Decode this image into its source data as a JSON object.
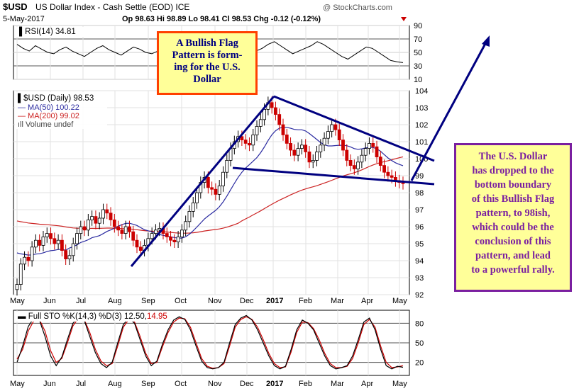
{
  "header": {
    "symbol": "$USD",
    "name": "US Dollar Index - Cash Settle (EOD)",
    "exchange": "ICE",
    "date": "5-May-2017",
    "ohlc": "Op 98.63  Hi 98.89  Lo 98.41  Cl 98.53  Chg -0.12 (-0.12%)",
    "brand": "@ StockCharts.com"
  },
  "rsi_label": "RSI(14) 34.81",
  "price_legend": {
    "title": "$USD (Daily) 98.53",
    "ma50": "MA(50) 100.22",
    "ma200": "MA(200) 99.02",
    "volume": "Volume undef"
  },
  "sto_label": "Full STO %K(14,3) %D(3) 12.50,",
  "sto_d_value": "14.95",
  "annotations": {
    "left": [
      "A Bullish Flag",
      "Pattern is form-",
      "ing for the U.S.",
      "Dollar"
    ],
    "right": [
      "The U.S. Dollar",
      "has dropped to the",
      "bottom boundary",
      "of this Bullish Flag",
      "pattern, to 98ish,",
      "which could be the",
      "conclusion of this",
      "pattern, and lead",
      "to a powerful rally."
    ]
  },
  "colors": {
    "up": "#000000",
    "down": "#cc0000",
    "ma50": "#2a2aa0",
    "ma200": "#cc2222",
    "trend": "#000080",
    "sto_k": "#000000",
    "sto_d": "#cc0000",
    "rsi": "#000000"
  },
  "chart_data": [
    {
      "type": "candlestick",
      "title": "$USD (Daily) 98.53",
      "x_ticks": [
        "May",
        "Jun",
        "Jul",
        "Aug",
        "Sep",
        "Oct",
        "Nov",
        "Dec",
        "2017",
        "Feb",
        "Mar",
        "Apr",
        "May"
      ],
      "ylim": [
        92,
        104
      ],
      "y_ticks": [
        92,
        93,
        94,
        95,
        96,
        97,
        98,
        99,
        100,
        101,
        102,
        103,
        104
      ],
      "close": [
        92.6,
        93.8,
        94.2,
        94.0,
        94.8,
        95.2,
        94.9,
        95.4,
        95.6,
        95.3,
        95.0,
        95.2,
        94.6,
        94.1,
        94.3,
        95.0,
        95.6,
        96.0,
        95.8,
        96.4,
        96.6,
        96.2,
        96.5,
        97.0,
        96.8,
        96.4,
        96.0,
        95.8,
        95.6,
        96.0,
        95.7,
        95.2,
        94.8,
        94.6,
        94.9,
        95.3,
        95.6,
        95.8,
        95.9,
        95.6,
        95.4,
        95.2,
        95.1,
        95.4,
        95.8,
        96.3,
        96.9,
        97.4,
        98.0,
        98.6,
        98.9,
        98.3,
        98.2,
        97.9,
        98.4,
        99.2,
        99.9,
        100.6,
        101.0,
        101.3,
        101.1,
        100.9,
        100.8,
        101.4,
        101.9,
        102.3,
        102.9,
        103.3,
        103.0,
        102.6,
        102.0,
        101.4,
        100.9,
        100.5,
        100.2,
        100.6,
        100.8,
        100.4,
        99.8,
        99.9,
        100.4,
        100.8,
        101.2,
        101.6,
        102.0,
        101.7,
        101.1,
        100.5,
        99.9,
        99.6,
        99.4,
        99.8,
        100.2,
        100.6,
        100.9,
        100.7,
        100.1,
        99.6,
        99.2,
        99.0,
        98.9,
        98.7,
        98.6,
        98.53
      ],
      "ma50": {
        "name": "MA(50)",
        "last": 100.22
      },
      "ma200": {
        "name": "MA(200)",
        "last": 99.02
      }
    },
    {
      "type": "line",
      "title": "RSI(14) 34.81",
      "ylim": [
        10,
        90
      ],
      "y_ticks": [
        10,
        30,
        50,
        70,
        90
      ],
      "values": [
        62,
        56,
        52,
        60,
        55,
        50,
        48,
        54,
        58,
        52,
        48,
        44,
        50,
        56,
        60,
        54,
        50,
        46,
        52,
        58,
        55,
        50,
        48,
        52,
        56,
        62,
        68,
        72,
        74,
        70,
        66,
        60,
        64,
        70,
        74,
        76,
        70,
        64,
        58,
        52,
        56,
        62,
        66,
        60,
        54,
        48,
        52,
        56,
        60,
        66,
        62,
        56,
        50,
        44,
        40,
        46,
        52,
        58,
        56,
        50,
        44,
        38,
        36,
        34.81
      ]
    },
    {
      "type": "line",
      "title": "Full STO %K(14,3) %D(3)",
      "ylim": [
        0,
        100
      ],
      "y_ticks": [
        20,
        50,
        80
      ],
      "k": [
        20,
        45,
        75,
        88,
        85,
        60,
        30,
        15,
        28,
        55,
        80,
        90,
        85,
        60,
        35,
        18,
        12,
        20,
        50,
        78,
        88,
        80,
        55,
        30,
        15,
        22,
        48,
        70,
        85,
        90,
        86,
        70,
        45,
        22,
        12,
        10,
        12,
        20,
        50,
        78,
        88,
        92,
        85,
        70,
        50,
        30,
        15,
        10,
        14,
        40,
        70,
        85,
        80,
        70,
        50,
        30,
        15,
        10,
        12,
        15,
        30,
        55,
        82,
        88,
        70,
        40,
        15,
        10,
        14,
        12.5
      ],
      "d": [
        25,
        40,
        68,
        84,
        86,
        68,
        38,
        20,
        26,
        50,
        76,
        88,
        86,
        66,
        40,
        22,
        15,
        18,
        45,
        74,
        86,
        82,
        60,
        34,
        18,
        20,
        44,
        66,
        82,
        88,
        87,
        74,
        50,
        26,
        14,
        11,
        12,
        18,
        45,
        74,
        86,
        90,
        86,
        74,
        55,
        34,
        18,
        12,
        13,
        36,
        66,
        82,
        81,
        72,
        55,
        34,
        18,
        12,
        12,
        14,
        26,
        50,
        78,
        86,
        74,
        45,
        20,
        12,
        13,
        14.95
      ]
    }
  ]
}
